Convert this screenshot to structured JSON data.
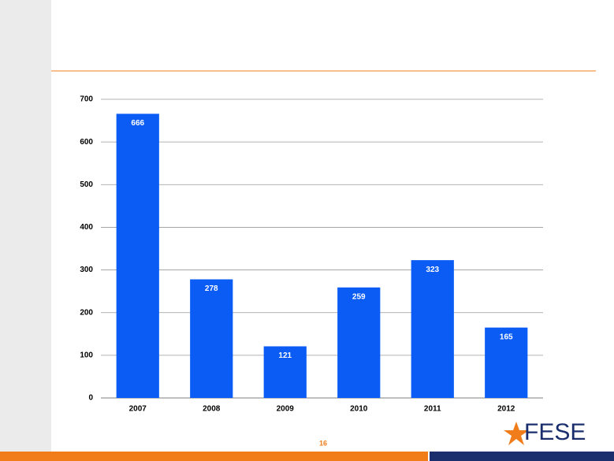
{
  "chart_data": {
    "type": "bar",
    "categories": [
      "2007",
      "2008",
      "2009",
      "2010",
      "2011",
      "2012"
    ],
    "values": [
      666,
      278,
      121,
      259,
      323,
      165
    ],
    "color": "#0a5cf5",
    "ylim": [
      0,
      700
    ],
    "yticks": [
      0,
      100,
      200,
      300,
      400,
      500,
      600,
      700
    ],
    "grid": true
  },
  "footer": {
    "page_number": "16",
    "logo": "FESE"
  }
}
